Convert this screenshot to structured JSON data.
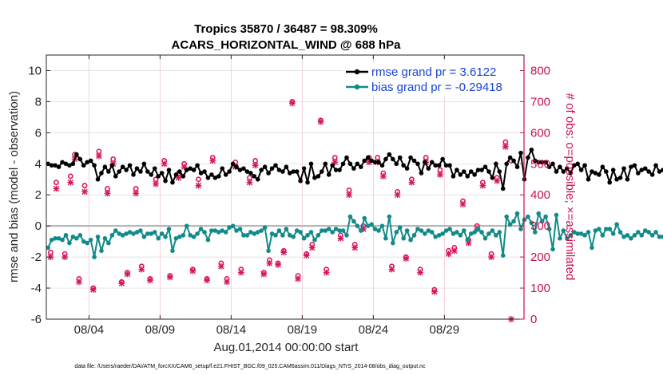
{
  "chart_data": {
    "type": "line",
    "title_line1": "Tropics 35870 / 36487 = 98.309%",
    "title_line2": "ACARS_HORIZONTAL_WIND @ 688 hPa",
    "xlabel": "Aug.01,2014 00:00:00 start",
    "ylabel_left": "rmse and bias (model - observation)",
    "ylabel_right": "# of obs: o=possible; ×=assimilated",
    "x_range": [
      1,
      34.6
    ],
    "ylim_left": [
      -6,
      11
    ],
    "ylim_right": [
      0,
      850
    ],
    "x_tick_positions": [
      4,
      9,
      14,
      19,
      24,
      29
    ],
    "x_tick_labels": [
      "08/04",
      "08/09",
      "08/14",
      "08/19",
      "08/24",
      "08/29"
    ],
    "y_left_ticks": [
      -6,
      -4,
      -2,
      0,
      2,
      4,
      6,
      8,
      10
    ],
    "y_left_tick_labels": [
      "-6",
      "-4",
      "-2",
      "0",
      "2",
      "4",
      "6",
      "8",
      "10"
    ],
    "y_right_ticks": [
      0,
      100,
      200,
      300,
      400,
      500,
      600,
      700,
      800
    ],
    "y_right_tick_labels": [
      "0",
      "100",
      "200",
      "300",
      "400",
      "500",
      "600",
      "700",
      "800"
    ],
    "legend": [
      {
        "label": "rmse grand pr = 3.6122",
        "color": "#000000"
      },
      {
        "label": "bias grand pr = -0.29418",
        "color": "#128a8a"
      }
    ],
    "colors": {
      "rmse": "#000000",
      "bias": "#128a8a",
      "obs": "#d6175e",
      "right_axis": "#c8104f",
      "zero_line": "#b0b0b0"
    },
    "series": [
      {
        "name": "rmse",
        "axis": "left",
        "x_start": 1.125,
        "x_step": 0.25,
        "values": [
          4.0,
          3.9,
          3.9,
          3.8,
          4.1,
          4.0,
          3.9,
          4.0,
          4.6,
          4.3,
          3.9,
          4.1,
          4.2,
          3.9,
          3.0,
          3.4,
          3.8,
          3.5,
          3.9,
          3.2,
          3.5,
          3.8,
          3.6,
          3.9,
          3.3,
          3.7,
          3.5,
          4.0,
          3.5,
          3.3,
          3.7,
          3.2,
          3.4,
          2.9,
          3.6,
          2.8,
          3.3,
          3.5,
          3.2,
          3.6,
          3.7,
          3.6,
          3.9,
          3.4,
          3.5,
          3.1,
          3.3,
          3.1,
          3.2,
          3.7,
          3.3,
          3.5,
          4.0,
          3.8,
          3.6,
          3.7,
          3.5,
          3.4,
          3.2,
          3.0,
          3.6,
          3.8,
          3.4,
          3.7,
          3.9,
          3.6,
          3.5,
          3.8,
          3.4,
          3.5,
          3.5,
          2.9,
          3.7,
          2.8,
          4.0,
          3.1,
          3.2,
          3.5,
          4.0,
          3.3,
          3.9,
          3.6,
          3.6,
          4.0,
          4.4,
          4.0,
          3.7,
          4.0,
          3.8,
          4.2,
          4.4,
          4.2,
          4.1,
          4.1,
          3.9,
          4.3,
          4.6,
          4.3,
          4.0,
          4.4,
          3.9,
          3.7,
          4.4,
          4.2,
          4.0,
          3.4,
          4.1,
          3.7,
          4.1,
          3.9,
          3.9,
          4.3,
          3.9,
          3.9,
          3.2,
          3.6,
          3.3,
          3.5,
          3.2,
          3.5,
          3.3,
          3.6,
          3.6,
          3.8,
          3.5,
          3.1,
          4.0,
          3.5,
          2.4,
          4.0,
          4.4,
          4.2,
          3.8,
          4.7,
          3.0,
          4.4,
          4.9,
          4.2,
          4.1,
          4.1,
          4.1,
          3.8,
          4.0,
          3.5,
          3.8,
          3.5,
          3.7,
          3.4,
          3.9,
          4.0,
          3.6,
          3.9,
          3.0,
          3.5,
          3.4,
          3.3,
          3.8,
          3.5,
          2.8,
          3.6,
          3.0,
          3.1,
          3.7,
          3.0,
          3.8,
          3.9,
          3.4,
          3.6,
          3.7,
          3.5,
          3.3,
          3.9,
          3.5,
          3.6,
          3.8,
          3.7,
          3.5,
          3.8,
          3.9,
          3.7,
          3.5,
          3.8,
          3.6,
          3.9,
          3.9,
          4.0,
          3.5,
          4.0,
          3.7,
          4.5,
          3.6,
          3.9,
          3.4,
          4.8,
          2.8
        ]
      },
      {
        "name": "bias",
        "axis": "left",
        "x_start": 1.125,
        "x_step": 0.25,
        "values": [
          -1.4,
          -0.9,
          -0.8,
          -0.8,
          -0.9,
          -0.6,
          -1.1,
          -0.7,
          -0.8,
          -0.6,
          -1.0,
          -1.1,
          -0.9,
          -2.0,
          -0.7,
          -1.6,
          -0.8,
          -1.1,
          -0.6,
          -0.3,
          -0.5,
          -0.6,
          -0.5,
          -0.4,
          -0.5,
          -0.4,
          -0.3,
          -0.7,
          -0.5,
          -0.5,
          -0.4,
          -0.8,
          -0.5,
          -0.7,
          -0.2,
          -1.6,
          -0.8,
          -0.7,
          -0.6,
          0.0,
          -0.6,
          -0.7,
          -0.5,
          -0.2,
          -0.4,
          -0.9,
          -0.3,
          -0.3,
          -0.4,
          -0.3,
          -0.4,
          -0.1,
          0.0,
          -0.3,
          -0.2,
          -0.6,
          -0.6,
          -0.4,
          -0.5,
          -0.4,
          -0.3,
          -0.1,
          -1.6,
          -0.5,
          -0.6,
          -0.3,
          -0.6,
          -0.2,
          -0.6,
          -0.7,
          -0.3,
          -0.4,
          -0.8,
          -0.6,
          -0.4,
          -0.9,
          -0.6,
          -0.3,
          -0.3,
          -0.2,
          -0.4,
          -0.2,
          -0.3,
          -0.3,
          -0.6,
          0.6,
          0.3,
          0.0,
          -0.3,
          0.5,
          0.0,
          0.1,
          -0.2,
          -0.3,
          0.0,
          -0.8,
          0.6,
          -1.1,
          -0.4,
          -0.1,
          -0.8,
          -0.3,
          -0.9,
          -0.6,
          -0.2,
          -0.3,
          -0.5,
          -0.3,
          -0.4,
          -0.7,
          -0.6,
          -0.5,
          -0.3,
          -0.2,
          -0.5,
          -0.4,
          -0.6,
          -0.3,
          -0.9,
          -0.5,
          -0.4,
          -0.2,
          -0.4,
          -0.8,
          -0.5,
          -0.3,
          -0.6,
          -0.4,
          -1.9,
          0.6,
          0.1,
          0.3,
          0.8,
          -0.2,
          0.4,
          0.6,
          0.2,
          -0.4,
          0.8,
          0.3,
          0.6,
          -0.2,
          -1.5,
          0.7,
          -0.8,
          -0.3,
          -0.8,
          -0.6,
          -0.4,
          -0.5,
          -0.5,
          -0.6,
          -0.4,
          -1.4,
          -0.3,
          -0.2,
          -0.6,
          -0.2,
          -0.2,
          -0.5,
          0.1,
          -0.4,
          -0.7,
          -0.6,
          -0.8,
          -0.6,
          -0.4,
          -0.6,
          -0.3,
          -0.4,
          -0.6,
          -0.4,
          -0.7,
          -0.7,
          -1.1,
          -0.5,
          -0.2,
          -0.5,
          -0.7,
          -0.6,
          -0.3,
          -0.8,
          -0.9,
          -0.5,
          -0.4,
          -0.6,
          -0.8,
          -1.0,
          -0.4,
          -0.6,
          -0.4,
          -0.7,
          0.6,
          0.1
        ]
      },
      {
        "name": "possible",
        "axis": "right",
        "marker": "circle",
        "x": [
          1.3,
          1.7,
          2.3,
          2.7,
          3.0,
          3.3,
          3.7,
          4.3,
          4.7,
          5.3,
          5.7,
          6.3,
          6.7,
          7.3,
          7.7,
          8.3,
          8.7,
          9.3,
          9.7,
          10.3,
          10.7,
          11.3,
          11.7,
          12.3,
          12.7,
          13.3,
          13.7,
          14.3,
          14.7,
          15.3,
          15.7,
          16.3,
          16.7,
          17.3,
          17.7,
          18.3,
          18.7,
          19.3,
          19.7,
          20.3,
          20.7,
          21.3,
          21.7,
          22.3,
          22.7,
          23.3,
          23.7,
          24.3,
          24.7,
          25.3,
          25.7,
          26.3,
          26.7,
          27.3,
          27.7,
          28.3,
          28.7,
          29.3,
          29.7,
          30.3,
          30.7,
          31.3,
          31.7,
          32.3,
          32.7,
          33.3,
          33.7
        ],
        "values": [
          215,
          440,
          210,
          460,
          530,
          130,
          430,
          100,
          540,
          420,
          515,
          120,
          150,
          420,
          170,
          130,
          450,
          510,
          140,
          470,
          500,
          160,
          450,
          130,
          520,
          180,
          130,
          505,
          160,
          455,
          510,
          150,
          190,
          180,
          220,
          700,
          140,
          210,
          240,
          640,
          160,
          520,
          270,
          415,
          240,
          300,
          520,
          520,
          470,
          170,
          410,
          200,
          450,
          160,
          520,
          95,
          480,
          220,
          230,
          380,
          255,
          300,
          440,
          210,
          455,
          570,
          510
        ]
      },
      {
        "name": "assimilated",
        "axis": "right",
        "marker": "cross",
        "x": [
          1.3,
          1.7,
          2.3,
          2.7,
          3.0,
          3.3,
          3.7,
          4.3,
          4.7,
          5.3,
          5.7,
          6.3,
          6.7,
          7.3,
          7.7,
          8.3,
          8.7,
          9.3,
          9.7,
          10.3,
          10.7,
          11.3,
          11.7,
          12.3,
          12.7,
          13.3,
          13.7,
          14.3,
          14.7,
          15.3,
          15.7,
          16.3,
          16.7,
          17.3,
          17.7,
          18.3,
          18.7,
          19.3,
          19.7,
          20.3,
          20.7,
          21.3,
          21.7,
          22.3,
          22.7,
          23.3,
          23.7,
          24.3,
          24.7,
          25.3,
          25.7,
          26.3,
          26.7,
          27.3,
          27.7,
          28.3,
          28.7,
          29.3,
          29.7,
          30.3,
          30.7,
          31.3,
          31.7,
          32.3,
          32.7,
          33.3,
          33.7
        ],
        "values": [
          200,
          420,
          200,
          440,
          515,
          120,
          410,
          95,
          525,
          405,
          500,
          115,
          145,
          405,
          160,
          125,
          435,
          500,
          135,
          455,
          490,
          155,
          430,
          125,
          510,
          170,
          120,
          490,
          150,
          440,
          495,
          145,
          180,
          175,
          215,
          695,
          130,
          205,
          230,
          635,
          150,
          505,
          260,
          400,
          230,
          290,
          505,
          505,
          460,
          160,
          400,
          195,
          440,
          150,
          505,
          88,
          465,
          210,
          220,
          370,
          245,
          290,
          430,
          200,
          445,
          555,
          0
        ]
      }
    ],
    "footnote": "data file: /Users/raeder/DAI/ATM_forcXX/CAM6_setup/f.e21.FHIST_BGC.f09_025.CAM6assim.011/Diags_NTrS_2014-08/obs_diag_output.nc"
  }
}
